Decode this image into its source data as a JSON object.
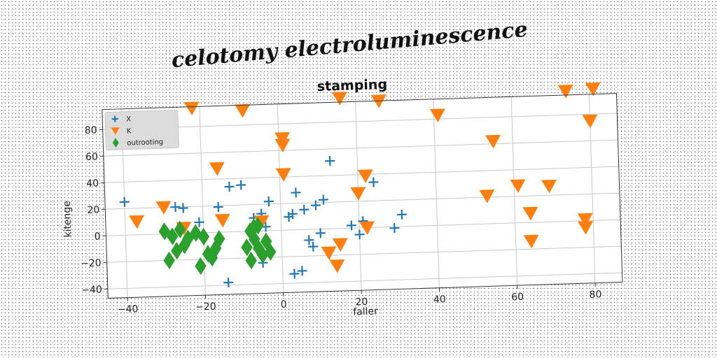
{
  "chart_data": {
    "type": "scatter",
    "suptitle": "celotomy electroluminescence",
    "title": "stamping",
    "xlabel": "faller",
    "ylabel": "kitenge",
    "xlim": [
      -45,
      87
    ],
    "ylim": [
      -47,
      95
    ],
    "xticks": [
      -40,
      -20,
      0,
      20,
      40,
      60,
      80
    ],
    "yticks": [
      -40,
      -20,
      0,
      20,
      40,
      60,
      80
    ],
    "grid": true,
    "legend_position": "top-left",
    "series": [
      {
        "name": "X",
        "marker": "plus",
        "color": "#1f77b4",
        "points": [
          [
            -40,
            25
          ],
          [
            -27,
            20
          ],
          [
            -25,
            19
          ],
          [
            -21,
            8
          ],
          [
            -16,
            19
          ],
          [
            -13,
            34
          ],
          [
            -10,
            35
          ],
          [
            -7,
            10
          ],
          [
            -5,
            13
          ],
          [
            -3,
            22
          ],
          [
            2,
            10
          ],
          [
            3,
            12
          ],
          [
            4,
            28
          ],
          [
            6,
            15
          ],
          [
            9,
            18
          ],
          [
            11,
            22
          ],
          [
            13,
            51
          ],
          [
            7,
            -8
          ],
          [
            8,
            -13
          ],
          [
            10,
            -3
          ],
          [
            3,
            -33
          ],
          [
            5,
            -31
          ],
          [
            -14,
            -38
          ],
          [
            -5,
            -24
          ],
          [
            18,
            2
          ],
          [
            21,
            5
          ],
          [
            24,
            34
          ],
          [
            29,
            -1
          ],
          [
            31,
            9
          ],
          [
            20,
            -5
          ],
          [
            -4,
            3
          ]
        ]
      },
      {
        "name": "K",
        "marker": "triangle-down",
        "color": "#ff7f0e",
        "points": [
          [
            -37,
            10
          ],
          [
            -30,
            20
          ],
          [
            -25,
            4
          ],
          [
            -22,
            94
          ],
          [
            -16,
            48
          ],
          [
            -15,
            9
          ],
          [
            -9,
            91
          ],
          [
            -5,
            7
          ],
          [
            1,
            69
          ],
          [
            1,
            64
          ],
          [
            1,
            42
          ],
          [
            12,
            -18
          ],
          [
            14,
            -28
          ],
          [
            15,
            -12
          ],
          [
            16,
            98
          ],
          [
            20,
            26
          ],
          [
            22,
            39
          ],
          [
            22,
            0
          ],
          [
            26,
            95
          ],
          [
            41,
            83
          ],
          [
            53,
            21
          ],
          [
            55,
            62
          ],
          [
            61,
            28
          ],
          [
            64,
            7
          ],
          [
            64,
            -14
          ],
          [
            69,
            27
          ],
          [
            74,
            98
          ],
          [
            78,
            1
          ],
          [
            78,
            -5
          ],
          [
            80,
            75
          ],
          [
            81,
            99
          ]
        ]
      },
      {
        "name": "outrooting",
        "marker": "diamond",
        "color": "#2ca02c",
        "points": [
          [
            -30,
            2
          ],
          [
            -28,
            -2
          ],
          [
            -26,
            3
          ],
          [
            -25,
            -9
          ],
          [
            -24,
            -4
          ],
          [
            -22,
            0
          ],
          [
            -20,
            -3
          ],
          [
            -19,
            -16
          ],
          [
            -18,
            -19
          ],
          [
            -17,
            -12
          ],
          [
            -16,
            -5
          ],
          [
            -27,
            -13
          ],
          [
            -29,
            -20
          ],
          [
            -21,
            -25
          ],
          [
            -8,
            0
          ],
          [
            -7,
            -6
          ],
          [
            -6,
            -13
          ],
          [
            -5,
            -18
          ],
          [
            -8,
            -22
          ],
          [
            -4,
            -8
          ],
          [
            -6,
            4
          ],
          [
            -3,
            -16
          ],
          [
            -9,
            -12
          ],
          [
            -7,
            3
          ]
        ]
      }
    ]
  }
}
